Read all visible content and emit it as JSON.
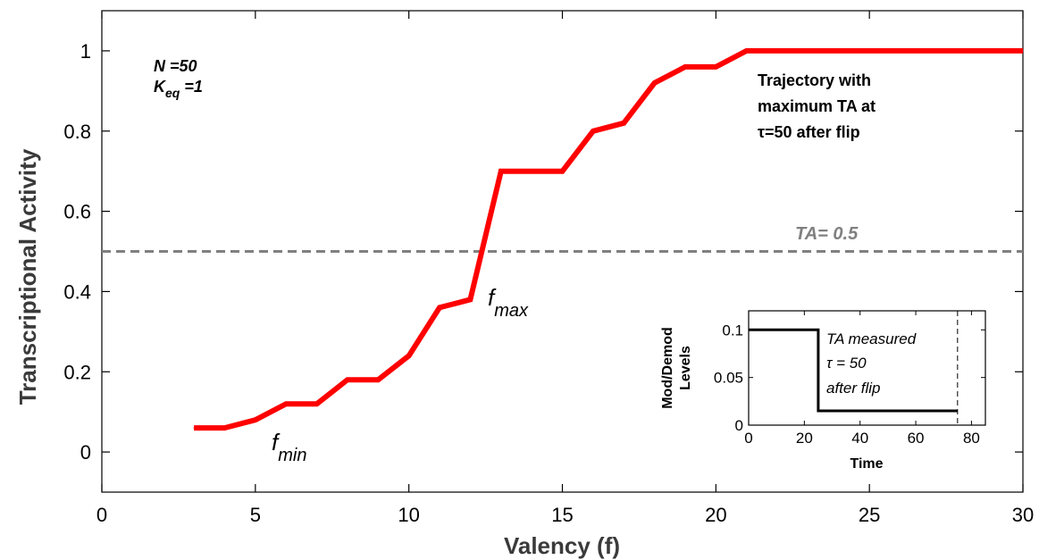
{
  "colors": {
    "series": "#ff0000",
    "threshold": "#808080",
    "axis": "#000000",
    "inset_line": "#000000"
  },
  "chart_data": [
    {
      "type": "line",
      "title": "",
      "xlabel": "Valency (f)",
      "ylabel": "Transcriptional Activity",
      "xlim": [
        0,
        30
      ],
      "ylim": [
        -0.1,
        1.1
      ],
      "xticks": [
        0,
        5,
        10,
        15,
        20,
        25,
        30
      ],
      "yticks": [
        0,
        0.2,
        0.4,
        0.6,
        0.8,
        1
      ],
      "x": [
        3,
        4,
        5,
        6,
        7,
        8,
        9,
        10,
        11,
        12,
        13,
        14,
        15,
        16,
        17,
        18,
        19,
        20,
        21,
        22,
        23,
        24,
        25,
        26,
        27,
        28,
        29,
        30
      ],
      "series": [
        {
          "values": [
            0.06,
            0.06,
            0.08,
            0.12,
            0.12,
            0.18,
            0.18,
            0.24,
            0.36,
            0.38,
            0.7,
            0.7,
            0.7,
            0.8,
            0.82,
            0.92,
            0.96,
            0.96,
            1.0,
            1.0,
            1.0,
            1.0,
            1.0,
            1.0,
            1.0,
            1.0,
            1.0,
            1.0
          ]
        }
      ],
      "threshold": {
        "y": 0.5,
        "label": "TA= 0.5"
      },
      "annotations": {
        "params_line1": "N =50",
        "params_k": "K",
        "params_eq_sub": "eq",
        "params_k_value": " =1",
        "trajectory_line1": "Trajectory with",
        "trajectory_line2": "maximum TA at",
        "trajectory_line3": "τ=50 after flip",
        "fmin_f": "f",
        "fmin_sub": "min",
        "fmax_f": "f",
        "fmax_sub": "max"
      },
      "grid": false
    },
    {
      "type": "line",
      "title": "",
      "xlabel": "Time",
      "ylabel_line1": "Mod/Demod",
      "ylabel_line2": "Levels",
      "xlim": [
        0,
        85
      ],
      "ylim": [
        0,
        0.12
      ],
      "xticks": [
        0,
        20,
        40,
        60,
        80
      ],
      "yticks": [
        0,
        0.05,
        0.1
      ],
      "ytick_labels": [
        "0",
        "0.05",
        "0.1"
      ],
      "x": [
        0,
        25,
        25,
        75
      ],
      "values": [
        0.1,
        0.1,
        0.015,
        0.015
      ],
      "marker_x": 75,
      "annotations": {
        "line1": "TA measured",
        "line2": "τ = 50",
        "line3": "after flip"
      },
      "grid": false
    }
  ]
}
